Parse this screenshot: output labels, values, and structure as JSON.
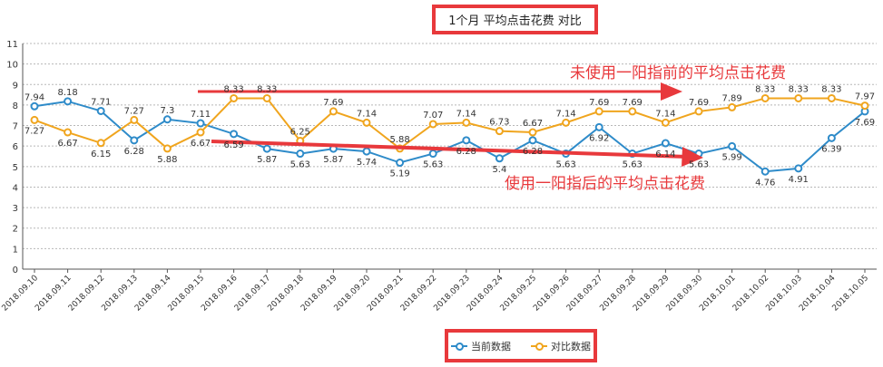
{
  "title": "1个月  平均点击花费  对比",
  "colors": {
    "current": "#2e8bc9",
    "compare": "#f0a51e",
    "annotation": "#e8393c",
    "frame": "#e8393c"
  },
  "annotations": {
    "before": "未使用一阳指前的平均点击花费",
    "after": "使用一阳指后的平均点击花费"
  },
  "chart_data": {
    "type": "line",
    "ylim": [
      0,
      11
    ],
    "yticks": [
      "0",
      "1",
      "2",
      "3",
      "4",
      "5",
      "6",
      "7",
      "8",
      "9",
      "10",
      "11"
    ],
    "grid": true,
    "legend_position": "bottom",
    "categories": [
      "2018.09.10",
      "2018.09.11",
      "2018.09.12",
      "2018.09.13",
      "2018.09.14",
      "2018.09.15",
      "2018.09.16",
      "2018.09.17",
      "2018.09.18",
      "2018.09.19",
      "2018.09.20",
      "2018.09.21",
      "2018.09.22",
      "2018.09.23",
      "2018.09.24",
      "2018.09.25",
      "2018.09.26",
      "2018.09.27",
      "2018.09.28",
      "2018.09.29",
      "2018.09.30",
      "2018.10.01",
      "2018.10.02",
      "2018.10.03",
      "2018.10.04",
      "2018.10.05"
    ],
    "series": [
      {
        "name": "当前数据",
        "color": "#2e8bc9",
        "values": [
          7.94,
          8.18,
          7.71,
          6.28,
          7.3,
          7.11,
          6.59,
          5.87,
          5.63,
          5.87,
          5.74,
          5.19,
          5.63,
          6.28,
          5.4,
          6.28,
          5.63,
          6.92,
          5.63,
          6.14,
          5.63,
          5.99,
          4.76,
          4.91,
          6.39,
          7.69
        ]
      },
      {
        "name": "对比数据",
        "color": "#f0a51e",
        "values": [
          7.27,
          6.67,
          6.15,
          7.27,
          5.88,
          6.67,
          8.33,
          8.33,
          6.25,
          7.69,
          7.14,
          5.88,
          7.07,
          7.14,
          6.73,
          6.67,
          7.14,
          7.69,
          7.69,
          7.14,
          7.69,
          7.89,
          8.33,
          8.33,
          8.33,
          7.97
        ]
      }
    ]
  }
}
